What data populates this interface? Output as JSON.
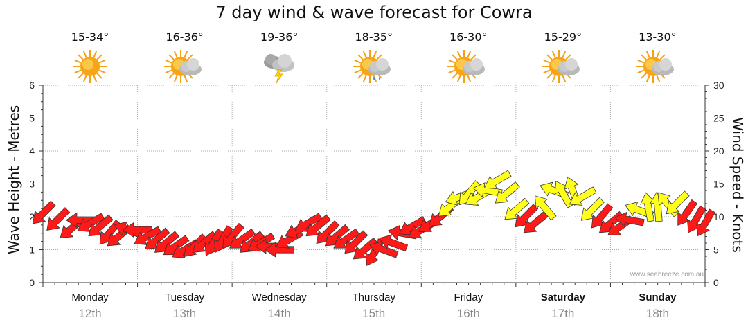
{
  "title": "7 day wind & wave forecast for Cowra",
  "days": [
    {
      "name": "Monday",
      "date": "12th",
      "temp": "15-34°",
      "icon": "sunny-icon",
      "bold": false
    },
    {
      "name": "Tuesday",
      "date": "13th",
      "temp": "16-36°",
      "icon": "partly-cloudy-icon",
      "bold": false
    },
    {
      "name": "Wednesday",
      "date": "14th",
      "temp": "19-36°",
      "icon": "thunderstorm-icon",
      "bold": false
    },
    {
      "name": "Thursday",
      "date": "15th",
      "temp": "18-35°",
      "icon": "sun-shower-icon",
      "bold": false
    },
    {
      "name": "Friday",
      "date": "16th",
      "temp": "16-30°",
      "icon": "partly-cloudy-icon",
      "bold": false
    },
    {
      "name": "Saturday",
      "date": "17th",
      "temp": "15-29°",
      "icon": "partly-cloudy-icon",
      "bold": true
    },
    {
      "name": "Sunday",
      "date": "18th",
      "temp": "13-30°",
      "icon": "partly-cloudy-icon",
      "bold": true
    }
  ],
  "watermark": "www.seabreeze.com.au",
  "colors": {
    "strong": "#ff1a1a",
    "moderate": "#ffff1a",
    "outline": "#333333"
  },
  "chart_data": {
    "type": "line",
    "ylabel_left": "Wave Height - Metres",
    "ylabel_right": "Wind Speed - Knots",
    "ylim_left": [
      0,
      6
    ],
    "ylim_right": [
      0,
      30
    ],
    "yticks_left": [
      0,
      1,
      2,
      3,
      4,
      5,
      6
    ],
    "yticks_right": [
      0,
      5,
      10,
      15,
      20,
      25,
      30
    ],
    "grid": true,
    "categories": [
      "Monday 12th",
      "Tuesday 13th",
      "Wednesday 14th",
      "Thursday 15th",
      "Friday 16th",
      "Saturday 17th",
      "Sunday 18th"
    ],
    "series": [
      {
        "values": [
          [
            0.0,
            10.5,
            135
          ],
          [
            0.15,
            9.5,
            135
          ],
          [
            0.3,
            8.2,
            140
          ],
          [
            0.4,
            9.5,
            180
          ],
          [
            0.5,
            9.0,
            150
          ],
          [
            0.6,
            8.5,
            140
          ],
          [
            0.7,
            7.5,
            130
          ],
          [
            0.8,
            7.0,
            140
          ],
          [
            0.9,
            8.0,
            200
          ],
          [
            1.0,
            8.0,
            180
          ],
          [
            1.1,
            7.0,
            150
          ],
          [
            1.2,
            6.5,
            140
          ],
          [
            1.3,
            6.0,
            140
          ],
          [
            1.4,
            5.5,
            145
          ],
          [
            1.5,
            5.0,
            150
          ],
          [
            1.6,
            5.5,
            135
          ],
          [
            1.7,
            6.0,
            140
          ],
          [
            1.8,
            6.0,
            120
          ],
          [
            1.9,
            6.5,
            120
          ],
          [
            2.0,
            7.0,
            130
          ],
          [
            2.1,
            6.5,
            145
          ],
          [
            2.2,
            6.0,
            140
          ],
          [
            2.3,
            6.0,
            150
          ],
          [
            2.4,
            5.5,
            180
          ],
          [
            2.5,
            5.0,
            180
          ],
          [
            2.6,
            6.5,
            150
          ],
          [
            2.7,
            8.0,
            155
          ],
          [
            2.8,
            9.0,
            150
          ],
          [
            2.9,
            8.5,
            140
          ],
          [
            3.0,
            7.5,
            135
          ],
          [
            3.1,
            7.0,
            140
          ],
          [
            3.2,
            6.5,
            145
          ],
          [
            3.3,
            6.0,
            135
          ],
          [
            3.4,
            5.0,
            140
          ],
          [
            3.5,
            4.5,
            120
          ],
          [
            3.6,
            5.0,
            200
          ],
          [
            3.7,
            6.0,
            200
          ],
          [
            3.8,
            7.5,
            190
          ],
          [
            3.9,
            8.5,
            150
          ],
          [
            4.0,
            8.0,
            150
          ],
          [
            4.1,
            9.0,
            145
          ],
          [
            4.2,
            10.0,
            140
          ],
          [
            4.3,
            11.5,
            140
          ],
          [
            4.4,
            13.0,
            160
          ],
          [
            4.5,
            13.5,
            130
          ],
          [
            4.6,
            13.0,
            150
          ],
          [
            4.7,
            14.0,
            190
          ],
          [
            4.8,
            15.5,
            150
          ],
          [
            4.9,
            13.5,
            140
          ],
          [
            5.0,
            11.0,
            140
          ],
          [
            5.1,
            10.0,
            135
          ],
          [
            5.2,
            9.0,
            140
          ],
          [
            5.3,
            11.5,
            230
          ],
          [
            5.4,
            14.0,
            200
          ],
          [
            5.5,
            13.5,
            240
          ],
          [
            5.6,
            14.0,
            250
          ],
          [
            5.7,
            13.0,
            150
          ],
          [
            5.8,
            11.0,
            135
          ],
          [
            5.9,
            10.0,
            130
          ],
          [
            6.0,
            9.0,
            140
          ],
          [
            6.1,
            8.5,
            145
          ],
          [
            6.2,
            9.5,
            190
          ],
          [
            6.3,
            11.0,
            200
          ],
          [
            6.4,
            11.5,
            260
          ],
          [
            6.5,
            11.5,
            265
          ],
          [
            6.6,
            12.0,
            230
          ],
          [
            6.7,
            12.0,
            135
          ],
          [
            6.8,
            10.5,
            125
          ],
          [
            6.9,
            9.5,
            120
          ],
          [
            7.0,
            9.0,
            120
          ]
        ],
        "value_format": "[day_offset, knots, bearing_deg]"
      }
    ]
  }
}
